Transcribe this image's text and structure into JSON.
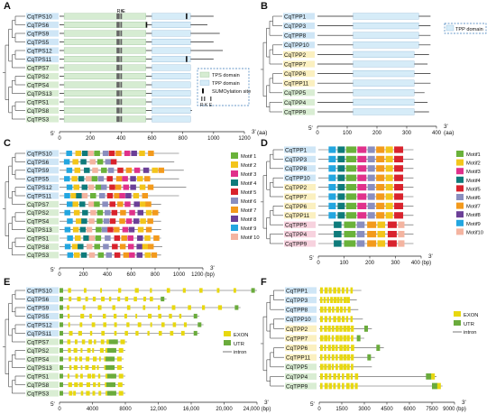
{
  "colors": {
    "tps_domain": "#d6ecd2",
    "tpp_domain": "#d6ecf8",
    "sumo": "#111111",
    "label_blue": "#cfe6f6",
    "label_green": "#d9edd3",
    "label_yellow": "#fbf0c0",
    "label_pink": "#f7d2de",
    "exon": "#e8d80f",
    "utr": "#6aab3c",
    "intron": "#555555",
    "motif_palette": [
      "#6ab23a",
      "#f3c51b",
      "#e0318b",
      "#0e7b7b",
      "#d9232d",
      "#8a8ebf",
      "#f39a1c",
      "#6b3f97",
      "#23a6e0",
      "#f4b4a0"
    ]
  },
  "panels": {
    "A": {
      "letter": "A",
      "genes": [
        "CqTPS10",
        "CqTPS6",
        "CqTPS9",
        "CqTPS5",
        "CqTPS12",
        "CqTPS11",
        "CqTPS7",
        "CqTPS2",
        "CqTPS4",
        "CqTPS13",
        "CqTPS1",
        "CqTPS8",
        "CqTPS3"
      ],
      "site_labels": [
        "RK",
        "E"
      ],
      "site_labels_lower": [
        "R K",
        "E"
      ],
      "axis_ticks": [
        "0",
        "200",
        "400",
        "600",
        "800",
        "1000",
        "1200"
      ],
      "unit": "(aa)",
      "end5": "5'",
      "end3": "3'",
      "legend": [
        "TPS domain",
        "TPP domain",
        "SUMOylation site"
      ]
    },
    "B": {
      "letter": "B",
      "genes": [
        "CqTPP1",
        "CqTPP3",
        "CqTPP8",
        "CqTPP10",
        "CqTPP2",
        "CqTPP7",
        "CqTPP6",
        "CqTPP11",
        "CqTPP5",
        "CqTPP4",
        "CqTPP9"
      ],
      "axis_ticks": [
        "0",
        "100",
        "200",
        "300",
        "400"
      ],
      "unit": "(aa)",
      "end5": "5'",
      "end3": "3'",
      "legend": [
        "TPP domain"
      ]
    },
    "C": {
      "letter": "C",
      "genes": [
        "CqTPS10",
        "CqTPS6",
        "CqTPS9",
        "CqTPS5",
        "CqTPS12",
        "CqTPS11",
        "CqTPS7",
        "CqTPS2",
        "CqTPS4",
        "CqTPS13",
        "CqTPS1",
        "CqTPS8",
        "CqTPS3"
      ],
      "axis_ticks": [
        "0",
        "200",
        "400",
        "600",
        "800",
        "1000",
        "1200 (bp)"
      ],
      "end5": "5'",
      "end3": "3'",
      "legend": [
        "Motif 1",
        "Motif 2",
        "Motif 3",
        "Motif 4",
        "Motif 5",
        "Motif 6",
        "Motif 7",
        "Motif 8",
        "Motif 9",
        "Motif 10"
      ]
    },
    "D": {
      "letter": "D",
      "genes": [
        "CqTPP1",
        "CqTPP3",
        "CqTPP8",
        "CqTPP10",
        "CqTPP2",
        "CqTPP7",
        "CqTPP6",
        "CqTPP11",
        "CqTPP5",
        "CqTPP4",
        "CqTPP9"
      ],
      "axis_ticks": [
        "0",
        "100",
        "200",
        "300",
        "400 (bp)"
      ],
      "end5": "5'",
      "end3": "3'",
      "legend": [
        "Motif1",
        "Motif2",
        "Motif3",
        "Motif4",
        "Motif5",
        "Motif6",
        "Motif7",
        "Motif8",
        "Motif9",
        "Motif10"
      ]
    },
    "E": {
      "letter": "E",
      "genes": [
        "CqTPS10",
        "CqTPS6",
        "CqTPS9",
        "CqTPS5",
        "CqTPS12",
        "CqTPS11",
        "CqTPS7",
        "CqTPS2",
        "CqTPS4",
        "CqTPS13",
        "CqTPS1",
        "CqTPS8",
        "CqTPS3"
      ],
      "axis_ticks": [
        "0",
        "4000",
        "8000",
        "12,000",
        "16,000",
        "20,000",
        "24,000 (bp)"
      ],
      "end5": "5'",
      "end3": "3'",
      "legend": [
        "EXON",
        "UTR",
        "intron"
      ]
    },
    "F": {
      "letter": "F",
      "genes": [
        "CqTPP1",
        "CqTPP3",
        "CqTPP8",
        "CqTPP10",
        "CqTPP2",
        "CqTPP7",
        "CqTPP6",
        "CqTPP11",
        "CqTPP5",
        "CqTPP4",
        "CqTPP9"
      ],
      "axis_ticks": [
        "0",
        "1500",
        "3000",
        "4500",
        "6000",
        "7500",
        "9000 (bp)"
      ],
      "end5": "5'",
      "end3": "3'",
      "legend": [
        "EXON",
        "UTR",
        "intron"
      ]
    }
  }
}
